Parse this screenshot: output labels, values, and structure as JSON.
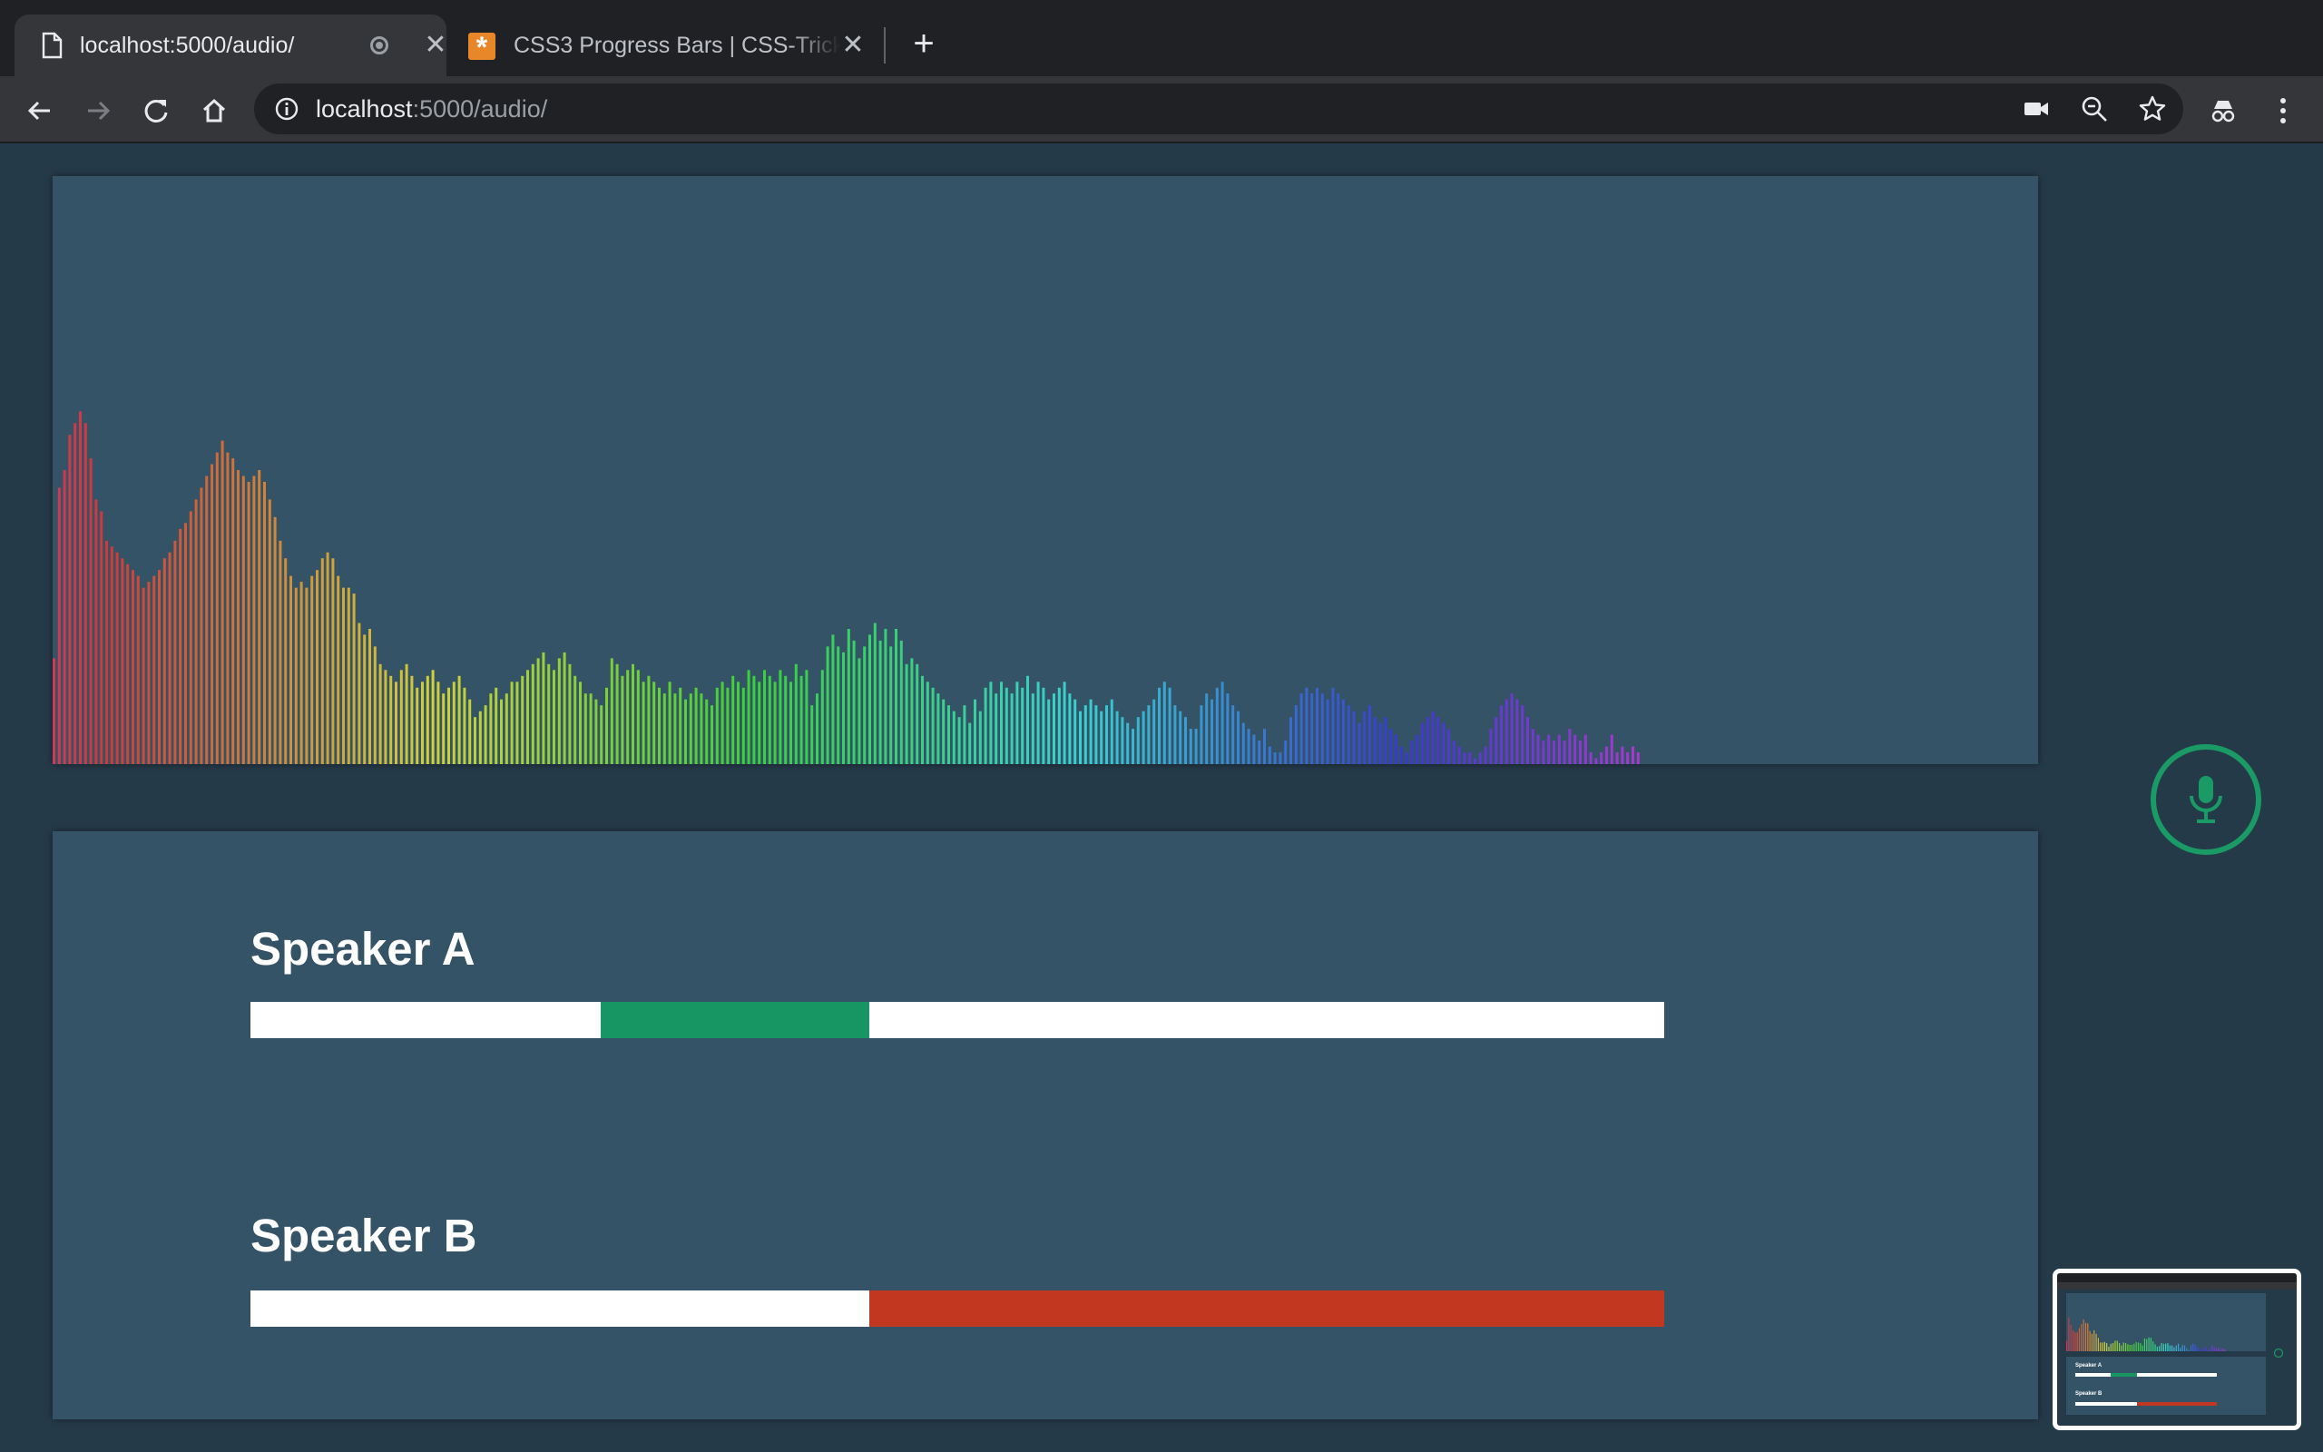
{
  "browser": {
    "tabs": [
      {
        "title": "localhost:5000/audio/",
        "active": true,
        "icon": "document-icon",
        "recording": true
      },
      {
        "title": "CSS3 Progress Bars | CSS-Tricks",
        "active": false,
        "icon": "css-tricks-icon"
      }
    ],
    "address": {
      "host": "localhost",
      "path": ":5000/audio/"
    },
    "toolbar_icons": [
      "back-icon",
      "forward-icon",
      "reload-icon",
      "home-icon",
      "info-icon",
      "camera-icon",
      "zoom-icon",
      "star-icon",
      "incognito-icon",
      "menu-icon"
    ]
  },
  "visualizer": {
    "background": "#355366",
    "levels": [
      0.18,
      0.47,
      0.5,
      0.56,
      0.58,
      0.6,
      0.58,
      0.52,
      0.45,
      0.43,
      0.38,
      0.37,
      0.36,
      0.35,
      0.34,
      0.33,
      0.32,
      0.3,
      0.31,
      0.32,
      0.33,
      0.35,
      0.36,
      0.38,
      0.4,
      0.41,
      0.43,
      0.45,
      0.47,
      0.49,
      0.51,
      0.53,
      0.55,
      0.53,
      0.52,
      0.5,
      0.49,
      0.48,
      0.49,
      0.5,
      0.48,
      0.45,
      0.42,
      0.38,
      0.35,
      0.32,
      0.3,
      0.31,
      0.3,
      0.32,
      0.33,
      0.35,
      0.36,
      0.35,
      0.32,
      0.3,
      0.3,
      0.29,
      0.24,
      0.22,
      0.23,
      0.2,
      0.17,
      0.16,
      0.15,
      0.14,
      0.16,
      0.17,
      0.15,
      0.13,
      0.14,
      0.15,
      0.16,
      0.14,
      0.12,
      0.13,
      0.14,
      0.15,
      0.13,
      0.11,
      0.08,
      0.09,
      0.1,
      0.12,
      0.13,
      0.11,
      0.12,
      0.14,
      0.14,
      0.15,
      0.16,
      0.17,
      0.18,
      0.19,
      0.17,
      0.16,
      0.18,
      0.19,
      0.17,
      0.15,
      0.14,
      0.12,
      0.12,
      0.11,
      0.1,
      0.13,
      0.18,
      0.17,
      0.15,
      0.16,
      0.17,
      0.16,
      0.14,
      0.15,
      0.14,
      0.13,
      0.12,
      0.14,
      0.12,
      0.13,
      0.11,
      0.12,
      0.13,
      0.12,
      0.11,
      0.1,
      0.13,
      0.14,
      0.13,
      0.15,
      0.14,
      0.13,
      0.16,
      0.15,
      0.14,
      0.16,
      0.15,
      0.14,
      0.16,
      0.15,
      0.14,
      0.17,
      0.15,
      0.16,
      0.1,
      0.12,
      0.16,
      0.2,
      0.22,
      0.2,
      0.19,
      0.23,
      0.21,
      0.18,
      0.2,
      0.22,
      0.24,
      0.21,
      0.23,
      0.2,
      0.23,
      0.21,
      0.17,
      0.18,
      0.17,
      0.15,
      0.14,
      0.13,
      0.12,
      0.11,
      0.1,
      0.09,
      0.08,
      0.1,
      0.07,
      0.11,
      0.09,
      0.13,
      0.14,
      0.12,
      0.14,
      0.13,
      0.12,
      0.14,
      0.13,
      0.15,
      0.12,
      0.14,
      0.13,
      0.11,
      0.12,
      0.13,
      0.14,
      0.12,
      0.11,
      0.09,
      0.1,
      0.11,
      0.1,
      0.09,
      0.1,
      0.11,
      0.09,
      0.08,
      0.07,
      0.06,
      0.08,
      0.09,
      0.1,
      0.11,
      0.13,
      0.14,
      0.13,
      0.1,
      0.09,
      0.08,
      0.06,
      0.06,
      0.1,
      0.12,
      0.11,
      0.13,
      0.14,
      0.12,
      0.1,
      0.09,
      0.07,
      0.06,
      0.05,
      0.04,
      0.06,
      0.03,
      0.02,
      0.02,
      0.04,
      0.08,
      0.1,
      0.12,
      0.13,
      0.12,
      0.13,
      0.12,
      0.11,
      0.13,
      0.12,
      0.11,
      0.1,
      0.09,
      0.07,
      0.09,
      0.1,
      0.08,
      0.07,
      0.08,
      0.06,
      0.05,
      0.03,
      0.02,
      0.04,
      0.05,
      0.07,
      0.08,
      0.09,
      0.08,
      0.07,
      0.06,
      0.04,
      0.03,
      0.02,
      0.02,
      0.01,
      0.02,
      0.03,
      0.06,
      0.08,
      0.1,
      0.11,
      0.12,
      0.11,
      0.1,
      0.08,
      0.06,
      0.05,
      0.04,
      0.05,
      0.04,
      0.05,
      0.04,
      0.06,
      0.05,
      0.04,
      0.05,
      0.02,
      0.01,
      0.02,
      0.03,
      0.05,
      0.02,
      0.03,
      0.02,
      0.03,
      0.02
    ],
    "hue_start": 350,
    "hue_end": 285
  },
  "speakers": [
    {
      "label": "Speaker A",
      "start": 0.248,
      "end": 0.438,
      "color": "#179664"
    },
    {
      "label": "Speaker B",
      "start": 0.438,
      "end": 1.0,
      "color": "#c1371f"
    }
  ],
  "mic": {
    "icon": "microphone-icon",
    "color": "#1a9a64"
  },
  "thumbnail": {
    "label_a": "Speaker A",
    "label_b": "Speaker B"
  }
}
